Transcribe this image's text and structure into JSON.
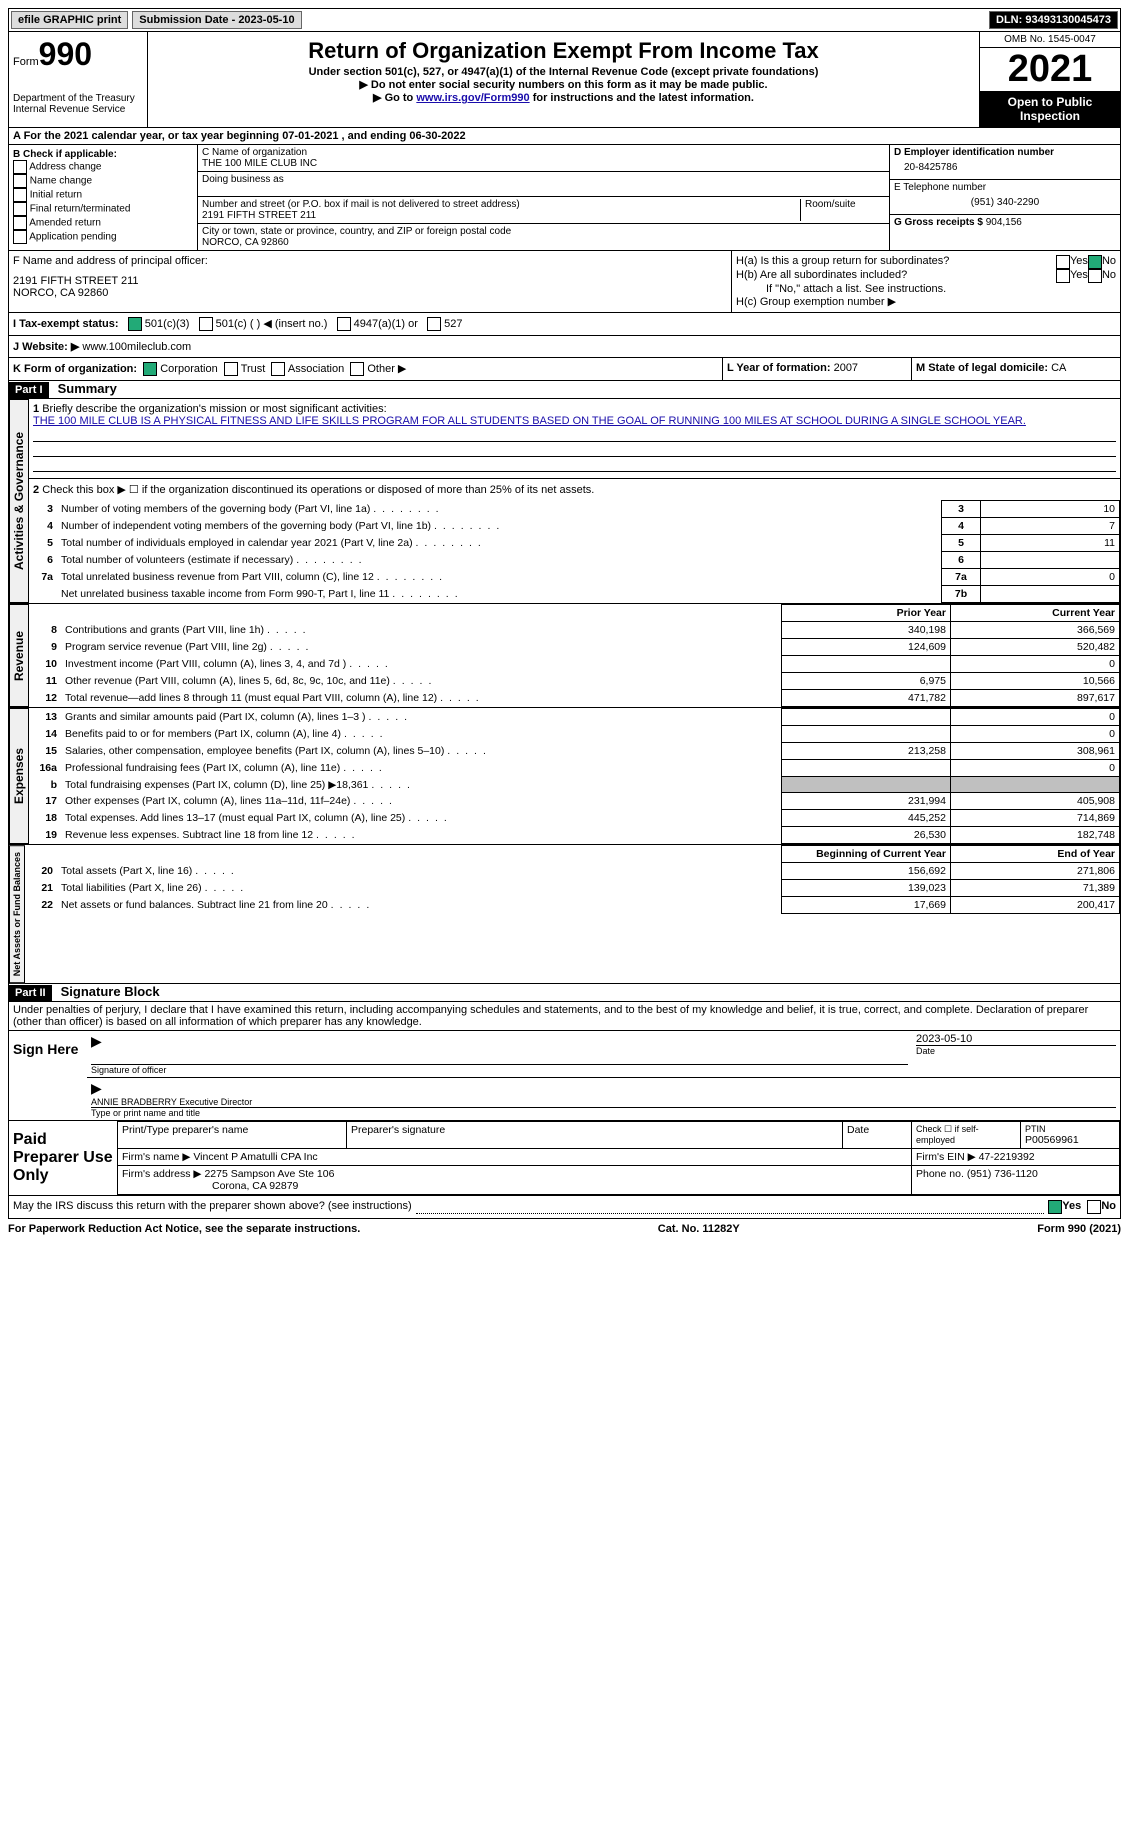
{
  "topbar": {
    "efile": "efile GRAPHIC print",
    "submission": "Submission Date - 2023-05-10",
    "dln": "DLN: 93493130045473"
  },
  "header": {
    "form_label": "Form",
    "form_num": "990",
    "title": "Return of Organization Exempt From Income Tax",
    "sub1": "Under section 501(c), 527, or 4947(a)(1) of the Internal Revenue Code (except private foundations)",
    "sub2": "▶ Do not enter social security numbers on this form as it may be made public.",
    "sub3_pre": "▶ Go to ",
    "sub3_link": "www.irs.gov/Form990",
    "sub3_post": " for instructions and the latest information.",
    "dept": "Department of the Treasury Internal Revenue Service",
    "omb": "OMB No. 1545-0047",
    "year": "2021",
    "open": "Open to Public Inspection"
  },
  "A": {
    "text": "A For the 2021 calendar year, or tax year beginning 07-01-2021    , and ending 06-30-2022"
  },
  "B": {
    "title": "B Check if applicable:",
    "items": [
      "Address change",
      "Name change",
      "Initial return",
      "Final return/terminated",
      "Amended return",
      "Application pending"
    ]
  },
  "C": {
    "name_lbl": "C Name of organization",
    "name": "THE 100 MILE CLUB INC",
    "dba_lbl": "Doing business as",
    "street_lbl": "Number and street (or P.O. box if mail is not delivered to street address)",
    "room_lbl": "Room/suite",
    "street": "2191 FIFTH STREET 211",
    "city_lbl": "City or town, state or province, country, and ZIP or foreign postal code",
    "city": "NORCO, CA  92860"
  },
  "D": {
    "lbl": "D Employer identification number",
    "val": "20-8425786"
  },
  "E": {
    "lbl": "E Telephone number",
    "val": "(951) 340-2290"
  },
  "G": {
    "lbl": "G Gross receipts $",
    "val": "904,156"
  },
  "F": {
    "lbl": "F  Name and address of principal officer:",
    "addr1": "2191 FIFTH STREET 211",
    "addr2": "NORCO, CA  92860"
  },
  "H": {
    "a": "H(a)  Is this a group return for subordinates?",
    "b": "H(b)  Are all subordinates included?",
    "note": "If \"No,\" attach a list. See instructions.",
    "c": "H(c)  Group exemption number ▶"
  },
  "I": {
    "lbl": "I    Tax-exempt status:",
    "opts": [
      "501(c)(3)",
      "501(c) (  ) ◀ (insert no.)",
      "4947(a)(1) or",
      "527"
    ]
  },
  "J": {
    "lbl": "J   Website: ▶",
    "val": "www.100mileclub.com"
  },
  "K": {
    "lbl": "K Form of organization:",
    "opts": [
      "Corporation",
      "Trust",
      "Association",
      "Other ▶"
    ]
  },
  "L": {
    "lbl": "L Year of formation:",
    "val": "2007"
  },
  "M": {
    "lbl": "M State of legal domicile:",
    "val": "CA"
  },
  "part1": {
    "hdr": "Part I",
    "title": "Summary"
  },
  "summary": {
    "l1": "Briefly describe the organization's mission or most significant activities:",
    "mission": "THE 100 MILE CLUB IS A PHYSICAL FITNESS AND LIFE SKILLS PROGRAM FOR ALL STUDENTS BASED ON THE GOAL OF RUNNING 100 MILES AT SCHOOL DURING A SINGLE SCHOOL YEAR.",
    "l2": "Check this box ▶ ☐ if the organization discontinued its operations or disposed of more than 25% of its net assets.",
    "rows_ag": [
      {
        "n": "3",
        "t": "Number of voting members of the governing body (Part VI, line 1a)",
        "box": "3",
        "v": "10"
      },
      {
        "n": "4",
        "t": "Number of independent voting members of the governing body (Part VI, line 1b)",
        "box": "4",
        "v": "7"
      },
      {
        "n": "5",
        "t": "Total number of individuals employed in calendar year 2021 (Part V, line 2a)",
        "box": "5",
        "v": "11"
      },
      {
        "n": "6",
        "t": "Total number of volunteers (estimate if necessary)",
        "box": "6",
        "v": ""
      },
      {
        "n": "7a",
        "t": "Total unrelated business revenue from Part VIII, column (C), line 12",
        "box": "7a",
        "v": "0"
      },
      {
        "n": "",
        "t": "Net unrelated business taxable income from Form 990-T, Part I, line 11",
        "box": "7b",
        "v": ""
      }
    ],
    "hdr_prior": "Prior Year",
    "hdr_curr": "Current Year",
    "rev": [
      {
        "n": "8",
        "t": "Contributions and grants (Part VIII, line 1h)",
        "p": "340,198",
        "c": "366,569"
      },
      {
        "n": "9",
        "t": "Program service revenue (Part VIII, line 2g)",
        "p": "124,609",
        "c": "520,482"
      },
      {
        "n": "10",
        "t": "Investment income (Part VIII, column (A), lines 3, 4, and 7d )",
        "p": "",
        "c": "0"
      },
      {
        "n": "11",
        "t": "Other revenue (Part VIII, column (A), lines 5, 6d, 8c, 9c, 10c, and 11e)",
        "p": "6,975",
        "c": "10,566"
      },
      {
        "n": "12",
        "t": "Total revenue—add lines 8 through 11 (must equal Part VIII, column (A), line 12)",
        "p": "471,782",
        "c": "897,617"
      }
    ],
    "exp": [
      {
        "n": "13",
        "t": "Grants and similar amounts paid (Part IX, column (A), lines 1–3 )",
        "p": "",
        "c": "0"
      },
      {
        "n": "14",
        "t": "Benefits paid to or for members (Part IX, column (A), line 4)",
        "p": "",
        "c": "0"
      },
      {
        "n": "15",
        "t": "Salaries, other compensation, employee benefits (Part IX, column (A), lines 5–10)",
        "p": "213,258",
        "c": "308,961"
      },
      {
        "n": "16a",
        "t": "Professional fundraising fees (Part IX, column (A), line 11e)",
        "p": "",
        "c": "0"
      },
      {
        "n": "b",
        "t": "Total fundraising expenses (Part IX, column (D), line 25) ▶18,361",
        "p": "shade",
        "c": "shade"
      },
      {
        "n": "17",
        "t": "Other expenses (Part IX, column (A), lines 11a–11d, 11f–24e)",
        "p": "231,994",
        "c": "405,908"
      },
      {
        "n": "18",
        "t": "Total expenses. Add lines 13–17 (must equal Part IX, column (A), line 25)",
        "p": "445,252",
        "c": "714,869"
      },
      {
        "n": "19",
        "t": "Revenue less expenses. Subtract line 18 from line 12",
        "p": "26,530",
        "c": "182,748"
      }
    ],
    "hdr_beg": "Beginning of Current Year",
    "hdr_end": "End of Year",
    "net": [
      {
        "n": "20",
        "t": "Total assets (Part X, line 16)",
        "p": "156,692",
        "c": "271,806"
      },
      {
        "n": "21",
        "t": "Total liabilities (Part X, line 26)",
        "p": "139,023",
        "c": "71,389"
      },
      {
        "n": "22",
        "t": "Net assets or fund balances. Subtract line 21 from line 20",
        "p": "17,669",
        "c": "200,417"
      }
    ]
  },
  "vtabs": {
    "ag": "Activities & Governance",
    "rev": "Revenue",
    "exp": "Expenses",
    "net": "Net Assets or Fund Balances"
  },
  "part2": {
    "hdr": "Part II",
    "title": "Signature Block"
  },
  "penalties": "Under penalties of perjury, I declare that I have examined this return, including accompanying schedules and statements, and to the best of my knowledge and belief, it is true, correct, and complete. Declaration of preparer (other than officer) is based on all information of which preparer has any knowledge.",
  "sign": {
    "here": "Sign Here",
    "sig_lbl": "Signature of officer",
    "date": "2023-05-10",
    "date_lbl": "Date",
    "name": "ANNIE BRADBERRY Executive Director",
    "name_lbl": "Type or print name and title"
  },
  "paid": {
    "lbl": "Paid Preparer Use Only",
    "h1": "Print/Type preparer's name",
    "h2": "Preparer's signature",
    "h3": "Date",
    "h4_pre": "Check ☐ if self-employed",
    "h5": "PTIN",
    "ptin": "P00569961",
    "firm_lbl": "Firm's name      ▶",
    "firm": "Vincent P Amatulli CPA Inc",
    "ein_lbl": "Firm's EIN ▶",
    "ein": "47-2219392",
    "addr_lbl": "Firm's address ▶",
    "addr1": "2275 Sampson Ave Ste 106",
    "addr2": "Corona, CA  92879",
    "phone_lbl": "Phone no.",
    "phone": "(951) 736-1120"
  },
  "discuss": "May the IRS discuss this return with the preparer shown above? (see instructions)",
  "footer": {
    "left": "For Paperwork Reduction Act Notice, see the separate instructions.",
    "mid": "Cat. No. 11282Y",
    "right": "Form 990 (2021)"
  },
  "yesno": {
    "yes": "Yes",
    "no": "No"
  }
}
